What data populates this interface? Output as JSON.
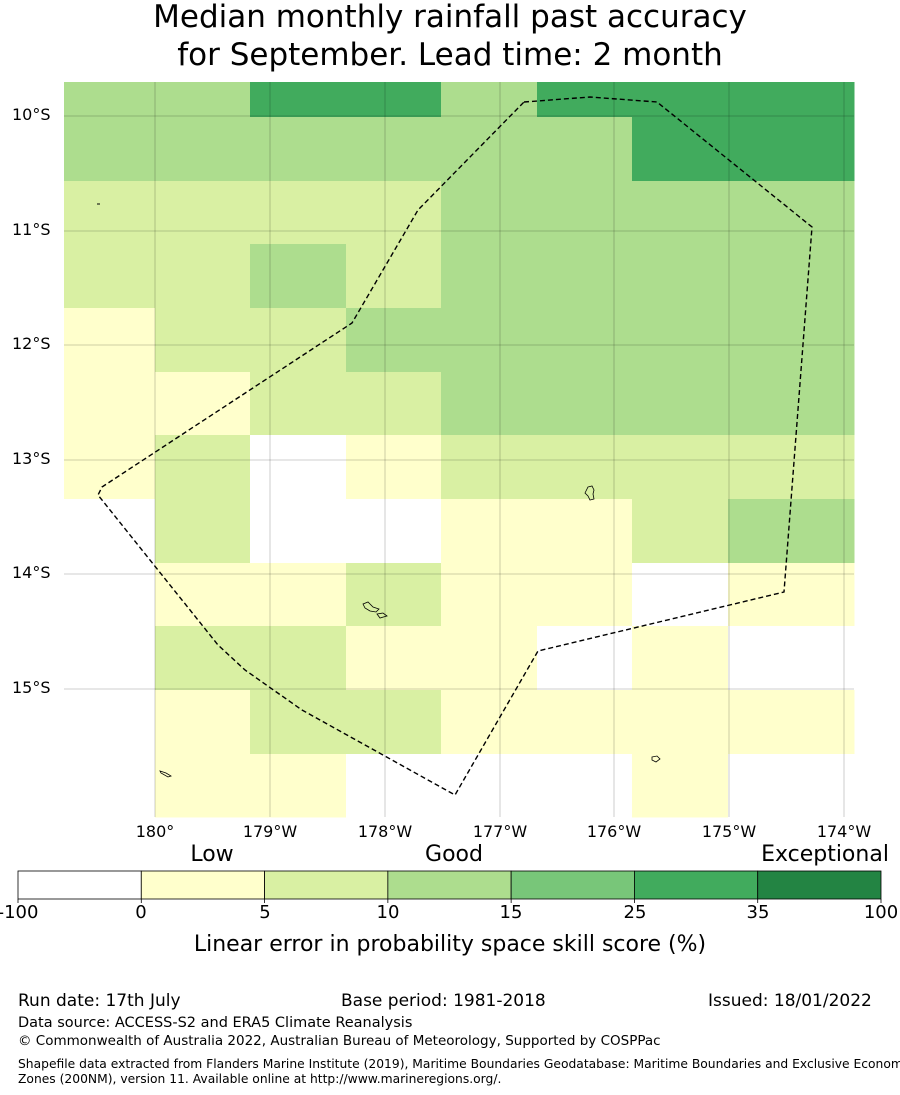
{
  "title": {
    "line1": "Median monthly rainfall past accuracy",
    "line2": "for September. Lead time: 2 month"
  },
  "map": {
    "lat_labels": [
      "10°S",
      "11°S",
      "12°S",
      "13°S",
      "14°S",
      "15°S"
    ],
    "lon_labels": [
      "180°",
      "179°W",
      "178°W",
      "177°W",
      "176°W",
      "175°W",
      "174°W"
    ],
    "grid": [
      [
        3,
        3,
        5,
        5,
        3,
        5,
        5,
        5
      ],
      [
        3,
        3,
        3,
        3,
        3,
        3,
        5,
        5
      ],
      [
        2,
        2,
        2,
        2,
        3,
        3,
        3,
        3
      ],
      [
        2,
        2,
        3,
        2,
        3,
        3,
        3,
        3
      ],
      [
        1,
        2,
        2,
        3,
        3,
        3,
        3,
        3
      ],
      [
        1,
        1,
        2,
        2,
        3,
        3,
        3,
        3
      ],
      [
        1,
        2,
        0,
        1,
        2,
        2,
        2,
        2
      ],
      [
        0,
        2,
        0,
        0,
        1,
        1,
        2,
        3
      ],
      [
        0,
        1,
        1,
        2,
        1,
        1,
        0,
        1
      ],
      [
        0,
        2,
        2,
        1,
        1,
        0,
        1,
        0
      ],
      [
        0,
        1,
        2,
        2,
        1,
        1,
        1,
        1
      ],
      [
        null,
        1,
        1,
        0,
        0,
        0,
        1,
        0
      ]
    ],
    "grid_note_scale": "index into colorbar categories"
  },
  "colorbar": {
    "colors": [
      "#ffffff",
      "#ffffcc",
      "#d9f0a3",
      "#addd8e",
      "#78c679",
      "#41ab5d",
      "#238443"
    ],
    "ticks": [
      "-100",
      "0",
      "5",
      "10",
      "15",
      "25",
      "35",
      "100"
    ],
    "categories": {
      "low": "Low",
      "good": "Good",
      "exceptional": "Exceptional"
    },
    "caption": "Linear error in probability space skill score (%)"
  },
  "footer": {
    "run_date": "Run date: 17th July",
    "base_period": "Base period: 1981-2018",
    "issued": "Issued: 18/01/2022",
    "data_source": "Data source: ACCESS-S2 and ERA5 Climate Reanalysis",
    "copyright": "© Commonwealth of Australia 2022, Australian Bureau of Meteorology, Supported by COSPPac",
    "shapefile_line1": "Shapefile data extracted from Flanders Marine Institute (2019), Maritime Boundaries Geodatabase: Maritime Boundaries and Exclusive Economic",
    "shapefile_line2": "Zones (200NM), version 11. Available online at http://www.marineregions.org/."
  }
}
